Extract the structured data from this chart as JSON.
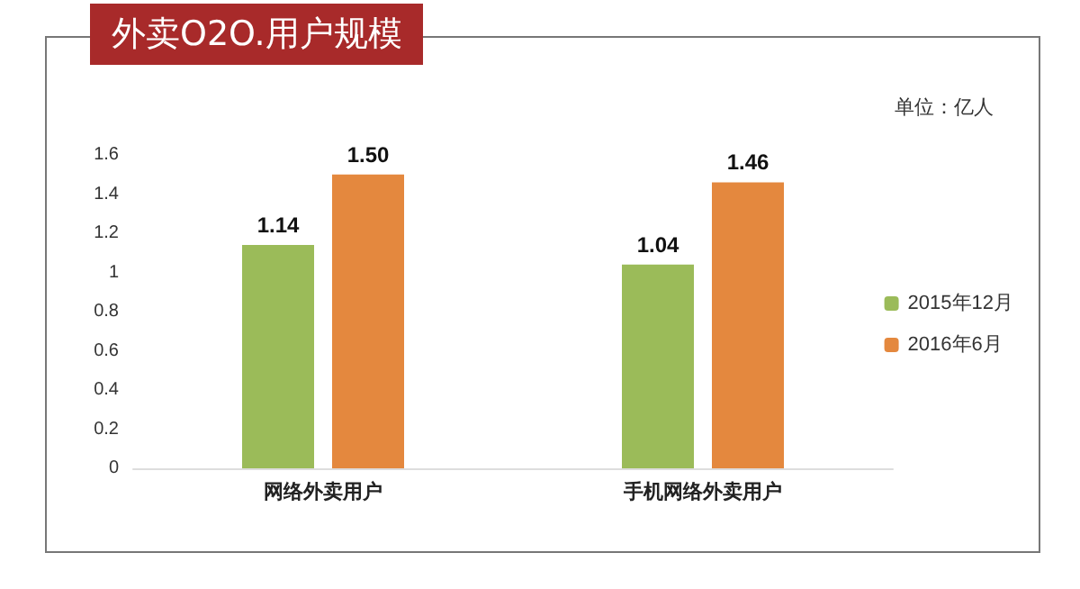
{
  "chart_data": {
    "type": "bar",
    "title": "外卖O2O.用户规模",
    "ylabel": "单位：亿人",
    "categories": [
      "网络外卖用户",
      "手机网络外卖用户"
    ],
    "series": [
      {
        "name": "2015年12月",
        "color": "#9bbb59",
        "values": [
          1.14,
          1.04
        ],
        "value_labels": [
          "1.14",
          "1.04"
        ]
      },
      {
        "name": "2016年6月",
        "color": "#e4883e",
        "values": [
          1.5,
          1.46
        ],
        "value_labels": [
          "1.50",
          "1.46"
        ]
      }
    ],
    "ylim": [
      0,
      1.6
    ],
    "yticks": [
      0,
      0.2,
      0.4,
      0.6,
      0.8,
      1,
      1.2,
      1.4,
      1.6
    ],
    "grid": false,
    "legend": "right"
  }
}
